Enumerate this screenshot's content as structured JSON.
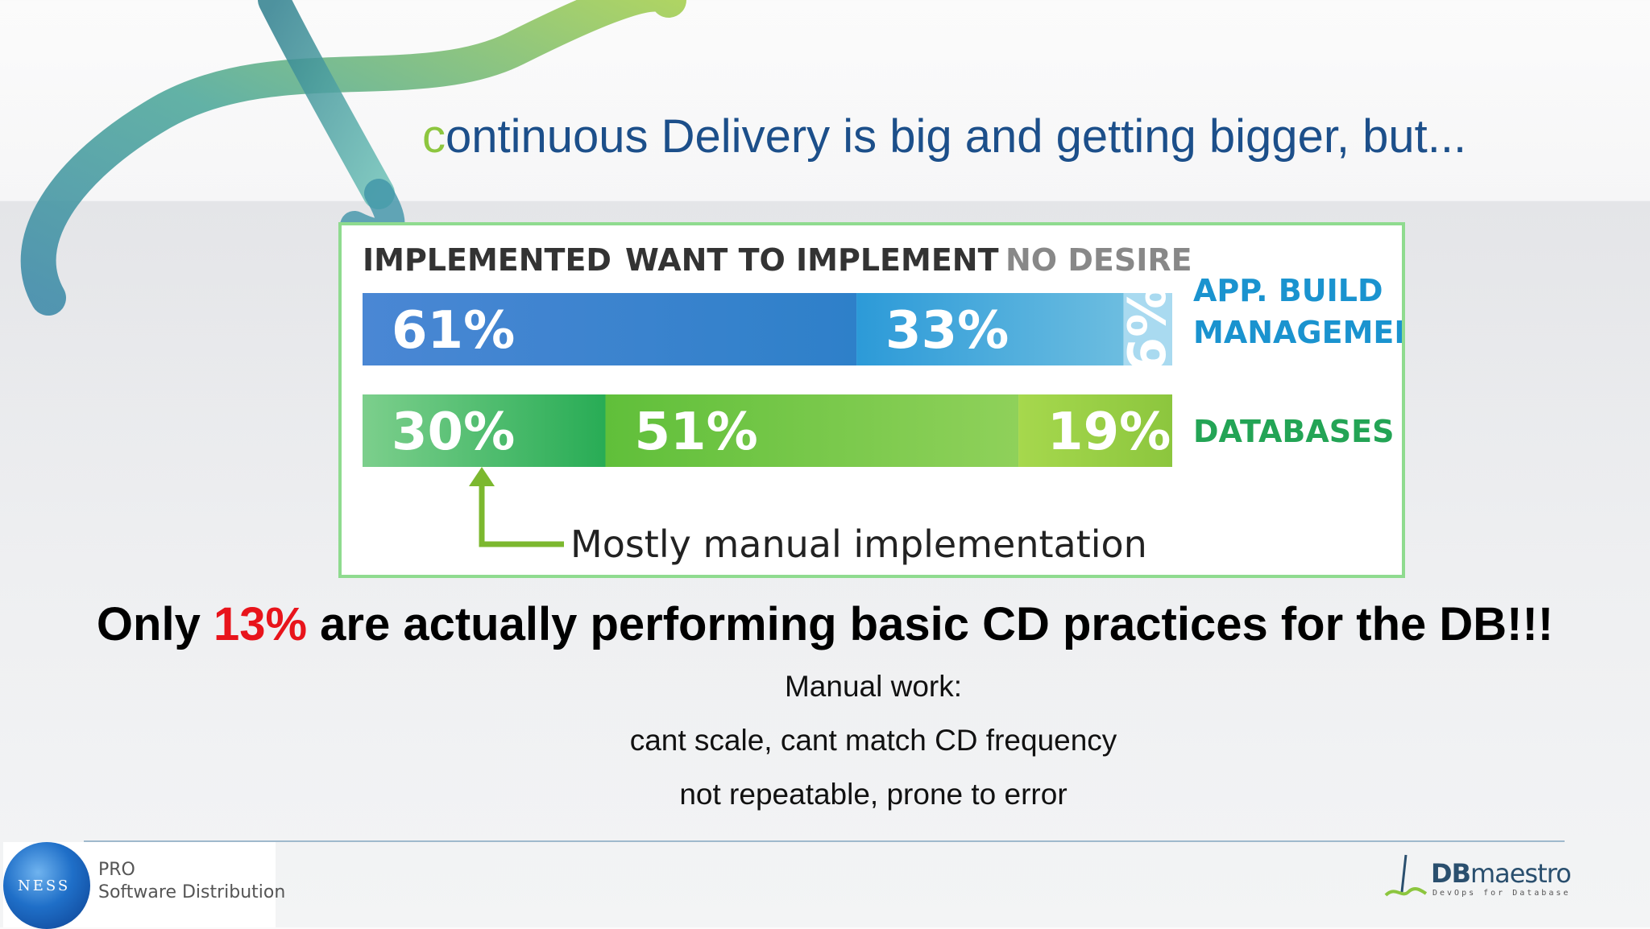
{
  "slide": {
    "title_initial": "c",
    "title_rest": "ontinuous Delivery is big and getting bigger, but...",
    "headline_pre": "Only ",
    "headline_highlight": "13%",
    "headline_post": " are actually performing basic CD practices for the DB!!!",
    "lines": [
      "Manual work:",
      "cant scale, cant match CD frequency",
      "not repeatable, prone to error"
    ]
  },
  "chart_data": {
    "type": "bar",
    "stacked": true,
    "orientation": "horizontal",
    "column_headers": [
      "IMPLEMENTED",
      "WANT TO IMPLEMENT",
      "NO DESIRE"
    ],
    "categories": [
      "APP. BUILD MANAGEMENT",
      "DATABASES"
    ],
    "category_label_lines": [
      [
        "APP. BUILD",
        "MANAGEMENT"
      ],
      [
        "DATABASES"
      ]
    ],
    "series": [
      {
        "name": "IMPLEMENTED",
        "values": [
          61,
          30
        ]
      },
      {
        "name": "WANT TO IMPLEMENT",
        "values": [
          33,
          51
        ]
      },
      {
        "name": "NO DESIRE",
        "values": [
          6,
          19
        ]
      }
    ],
    "value_labels": [
      [
        "61%",
        "33%",
        "6%"
      ],
      [
        "30%",
        "51%",
        "19%"
      ]
    ],
    "annotation": "Mostly manual implementation",
    "colors": {
      "app": [
        [
          "#4a87d4",
          "#2e80c9"
        ],
        [
          "#2c9ad8",
          "#6cbde0"
        ],
        [
          "#a9daf0",
          "#a9daf0"
        ]
      ],
      "db": [
        [
          "#7ccf8c",
          "#28ac55"
        ],
        [
          "#60bf3a",
          "#8fd15a"
        ],
        [
          "#a6d84d",
          "#8cc63e"
        ]
      ],
      "header_dark": "#333333",
      "header_light": "#888888",
      "category_text": "#1a93cf",
      "category_text_db": "#23a455",
      "arrow": "#7cb82f"
    }
  },
  "footer": {
    "left_logo": {
      "mark": "NESS",
      "line1": "PRO",
      "line2": "Software Distribution"
    },
    "right_logo": {
      "name_bold": "DB",
      "name_rest": "maestro",
      "tagline": "DevOps for Database"
    }
  }
}
